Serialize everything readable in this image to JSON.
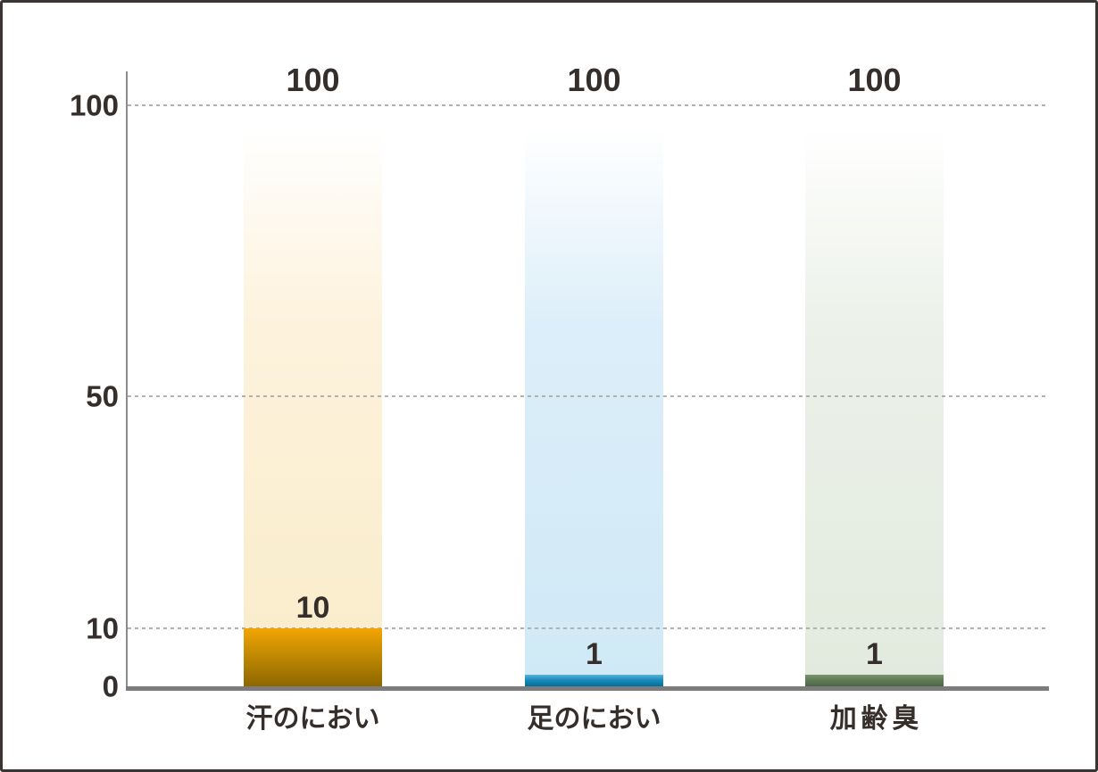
{
  "chart": {
    "background": "#ffffff",
    "frame_border_color": "#3a3432",
    "axis_color": "#8c8c8c",
    "baseline_color": "#7c7c7c",
    "gridline_color": "#b2afac",
    "text_color": "#352e2b"
  },
  "chart_data": {
    "type": "bar",
    "title": "",
    "xlabel": "",
    "ylabel": "",
    "categories": [
      "汗のにおい",
      "足のにおい",
      "加齢臭"
    ],
    "series": [
      {
        "name": "full-scale-bar",
        "values": [
          100,
          100,
          100
        ]
      },
      {
        "name": "highlight-bar",
        "values": [
          10,
          1,
          1
        ]
      }
    ],
    "yticks": [
      0,
      10,
      50,
      100
    ],
    "grid_values": [
      10,
      50,
      100
    ],
    "ylim": [
      0,
      106
    ],
    "grid": "horizontal dashed lines at 10, 50, 100",
    "legend": "none",
    "bars": [
      {
        "category": "汗のにおい",
        "top_label": "100",
        "value_label": "10",
        "value": 10,
        "max_value": 100,
        "solid_gradient": [
          "#f3a503",
          "#c28a02",
          "#8d6700"
        ],
        "faded_bottom": "#f9ecca",
        "faded_top": "#fdf2dc"
      },
      {
        "category": "足のにおい",
        "top_label": "100",
        "value_label": "1",
        "value": 1,
        "max_value": 100,
        "solid_gradient": [
          "#58b3da",
          "#1b8cbc",
          "#026d9b"
        ],
        "faded_bottom": "#cfe9f6",
        "faded_top": "#dceef9"
      },
      {
        "category": "加齢臭",
        "top_label": "100",
        "value_label": "1",
        "value": 1,
        "max_value": 100,
        "solid_gradient": [
          "#7b9471",
          "#5f7c57",
          "#4b6746"
        ],
        "faded_bottom": "#e2eade",
        "faded_top": "#ecf1e9"
      }
    ]
  }
}
